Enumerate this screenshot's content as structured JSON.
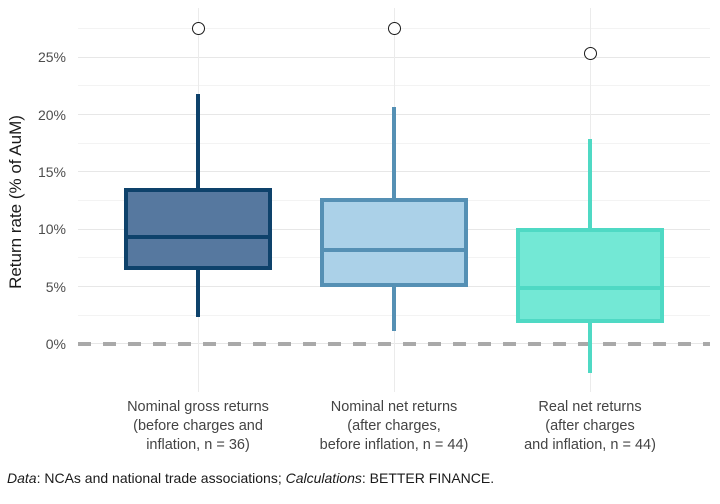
{
  "chart_data": {
    "type": "boxplot",
    "title": "",
    "xlabel": "",
    "ylabel": "Return rate (% of AuM)",
    "ylim": [
      -4.2,
      29.3
    ],
    "yticks": [
      0,
      5,
      10,
      15,
      20,
      25
    ],
    "ytick_labels": [
      "0%",
      "5%",
      "10%",
      "15%",
      "20%",
      "25%"
    ],
    "yticks_minor": [
      2.5,
      7.5,
      12.5,
      17.5,
      22.5,
      27.5
    ],
    "grid": true,
    "zero_line": {
      "value": 0,
      "style": "dashed",
      "color": "#A9A9A9"
    },
    "series": [
      {
        "label": "Nominal gross returns (before charges and inflation, n = 36)",
        "label_lines": [
          "Nominal gross returns",
          "(before charges and",
          "inflation, n = 36)"
        ],
        "stats": {
          "whisker_low": 2.3,
          "q1": 6.4,
          "median": 9.3,
          "q3": 13.6,
          "whisker_high": 21.8
        },
        "outliers": [
          27.5
        ],
        "fill": "#56789F",
        "stroke": "#0E426B"
      },
      {
        "label": "Nominal net returns (after charges, before inflation, n = 44)",
        "label_lines": [
          "Nominal net returns",
          "(after charges,",
          "before inflation, n = 44)"
        ],
        "stats": {
          "whisker_low": 1.1,
          "q1": 5.0,
          "median": 8.2,
          "q3": 12.7,
          "whisker_high": 20.7
        },
        "outliers": [
          27.5
        ],
        "fill": "#ABD1E8",
        "stroke": "#5590B4"
      },
      {
        "label": "Real net returns (after charges and inflation, n = 44)",
        "label_lines": [
          "Real net returns",
          "(after charges",
          "and inflation, n = 44)"
        ],
        "stats": {
          "whisker_low": -2.5,
          "q1": 1.8,
          "median": 4.9,
          "q3": 10.1,
          "whisker_high": 17.9
        },
        "outliers": [
          25.3
        ],
        "fill": "#73E8D5",
        "stroke": "#4FD9C4"
      }
    ],
    "colors": {
      "grid_major": "#E7E7E7",
      "grid_minor": "#F3F3F3",
      "grid_vertical": "#EBEBEB",
      "zero_line": "#A9A9A9",
      "tick_text": "#4D4D4D",
      "category_text": "#444444",
      "axis_title_text": "#1A1A1A",
      "outlier_stroke": "#1A1A1A"
    },
    "legend": null
  },
  "caption": {
    "data_label": "Data",
    "data_text": ": NCAs and national trade associations; ",
    "calc_label": "Calculations",
    "calc_text": ": BETTER FINANCE."
  }
}
